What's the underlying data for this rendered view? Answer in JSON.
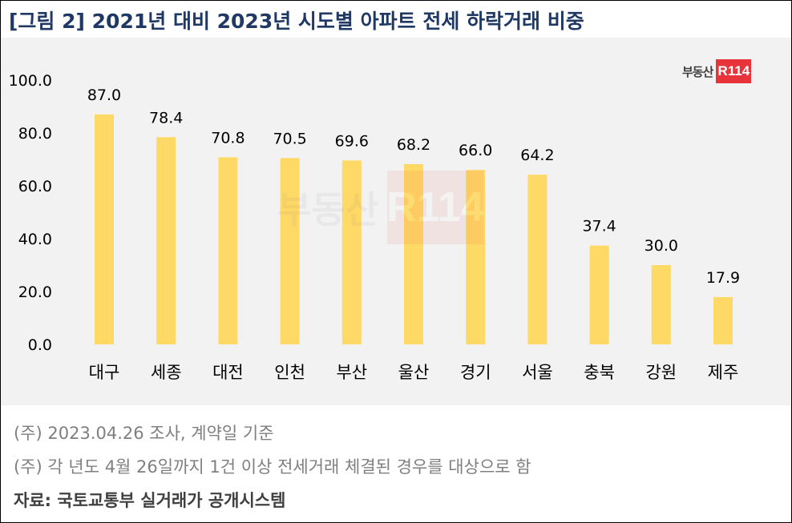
{
  "header": {
    "title": "[그림 2] 2021년 대비 2023년 시도별 아파트 전세 하락거래 비중"
  },
  "logo": {
    "text": "부동산",
    "box_text": "R114",
    "watermark_text": "부동산",
    "watermark_box_text": "R114"
  },
  "colors": {
    "bar": "#ffd966",
    "title": "#1f3864",
    "panel": "#f2f2f2",
    "logo_red": "#e8333b"
  },
  "chart_data": {
    "type": "bar",
    "categories": [
      "대구",
      "세종",
      "대전",
      "인천",
      "부산",
      "울산",
      "경기",
      "서울",
      "충북",
      "강원",
      "제주"
    ],
    "values": [
      87.0,
      78.4,
      70.8,
      70.5,
      69.6,
      68.2,
      66.0,
      64.2,
      37.4,
      30.0,
      17.9
    ],
    "data_labels": [
      "87.0",
      "78.4",
      "70.8",
      "70.5",
      "69.6",
      "68.2",
      "66.0",
      "64.2",
      "37.4",
      "30.0",
      "17.9"
    ],
    "y_ticks": [
      "0.0",
      "20.0",
      "40.0",
      "60.0",
      "80.0",
      "100.0"
    ],
    "ylim": [
      0,
      100
    ],
    "grid": false,
    "legend": "none"
  },
  "notes": [
    "(주) 2023.04.26 조사, 계약일 기준",
    "(주) 각 년도 4월 26일까지 1건 이상 전세거래 체결된 경우를 대상으로 함"
  ],
  "source": "자료: 국토교통부 실거래가 공개시스템"
}
